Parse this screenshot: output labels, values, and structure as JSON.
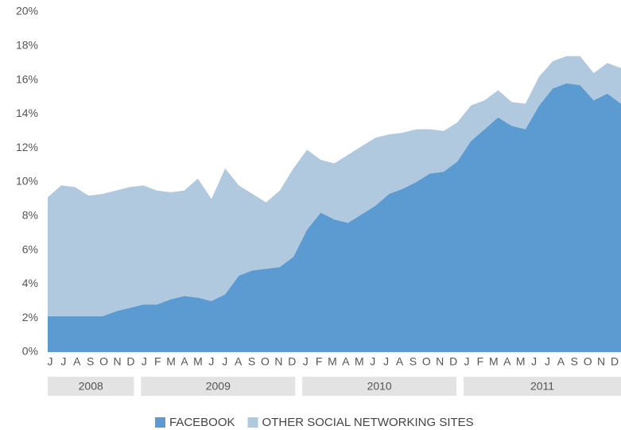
{
  "chart_data": {
    "type": "stacked_area",
    "ylim": [
      0,
      20
    ],
    "yticks": [
      {
        "value": 0,
        "label": "0%"
      },
      {
        "value": 2,
        "label": "2%"
      },
      {
        "value": 4,
        "label": "4%"
      },
      {
        "value": 6,
        "label": "6%"
      },
      {
        "value": 8,
        "label": "8%"
      },
      {
        "value": 10,
        "label": "10%"
      },
      {
        "value": 12,
        "label": "12%"
      },
      {
        "value": 14,
        "label": "14%"
      },
      {
        "value": 16,
        "label": "16%"
      },
      {
        "value": 18,
        "label": "18%"
      },
      {
        "value": 20,
        "label": "20%"
      }
    ],
    "year_groups": [
      {
        "label": "2008",
        "months": [
          "J",
          "J",
          "A",
          "S",
          "O",
          "N",
          "D"
        ]
      },
      {
        "label": "2009",
        "months": [
          "J",
          "F",
          "M",
          "A",
          "M",
          "J",
          "J",
          "A",
          "S",
          "O",
          "N",
          "D"
        ]
      },
      {
        "label": "2010",
        "months": [
          "J",
          "F",
          "M",
          "A",
          "M",
          "J",
          "J",
          "A",
          "S",
          "O",
          "N",
          "D"
        ]
      },
      {
        "label": "2011",
        "months": [
          "J",
          "F",
          "M",
          "A",
          "M",
          "J",
          "J",
          "A",
          "S",
          "O",
          "N",
          "D"
        ]
      }
    ],
    "series": [
      {
        "name": "FACEBOOK",
        "color": "#5b9bd2",
        "values": [
          2.1,
          2.1,
          2.1,
          2.1,
          2.1,
          2.4,
          2.6,
          2.8,
          2.8,
          3.1,
          3.3,
          3.2,
          3.0,
          3.4,
          4.5,
          4.8,
          4.9,
          5.0,
          5.6,
          7.2,
          8.2,
          7.8,
          7.6,
          8.1,
          8.6,
          9.3,
          9.6,
          10.0,
          10.5,
          10.6,
          11.2,
          12.4,
          13.1,
          13.8,
          13.3,
          13.1,
          14.5,
          15.5,
          15.8,
          15.7,
          14.8,
          15.2,
          14.6
        ]
      },
      {
        "name": "OTHER SOCIAL NETWORKING SITES",
        "color": "#b0c9de",
        "values": [
          7.0,
          7.7,
          7.6,
          7.1,
          7.2,
          7.1,
          7.1,
          7.0,
          6.7,
          6.3,
          6.2,
          7.0,
          6.0,
          7.4,
          5.3,
          4.5,
          3.9,
          4.5,
          5.2,
          4.7,
          3.1,
          3.3,
          4.0,
          4.0,
          4.0,
          3.5,
          3.3,
          3.1,
          2.6,
          2.4,
          2.3,
          2.1,
          1.7,
          1.6,
          1.4,
          1.5,
          1.7,
          1.6,
          1.6,
          1.7,
          1.6,
          1.8,
          2.1
        ]
      }
    ]
  }
}
